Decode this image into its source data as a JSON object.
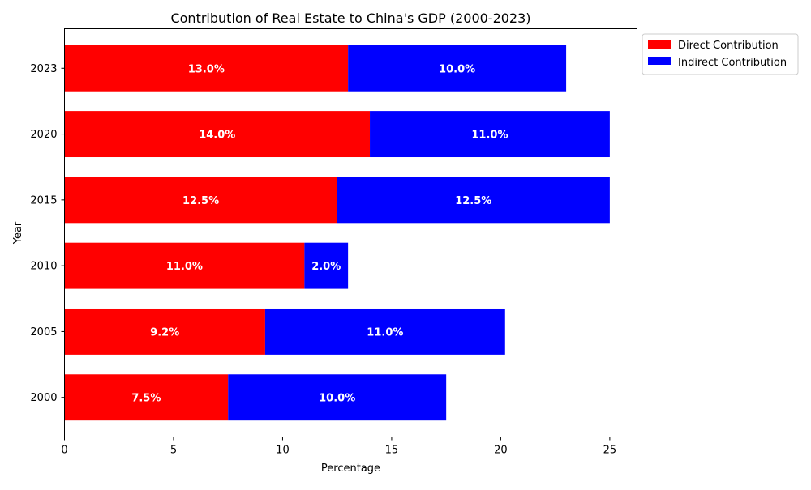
{
  "chart_data": {
    "type": "bar",
    "orientation": "horizontal",
    "stacked": true,
    "title": "Contribution of Real Estate to China's GDP (2000-2023)",
    "xlabel": "Percentage",
    "ylabel": "Year",
    "categories": [
      "2000",
      "2005",
      "2010",
      "2015",
      "2020",
      "2023"
    ],
    "series": [
      {
        "name": "Direct Contribution",
        "color": "#ff0000",
        "values": [
          7.5,
          9.2,
          11.0,
          12.5,
          14.0,
          13.0
        ],
        "value_labels": [
          "7.5%",
          "9.2%",
          "11.0%",
          "12.5%",
          "14.0%",
          "13.0%"
        ]
      },
      {
        "name": "Indirect Contribution",
        "color": "#0000ff",
        "values": [
          10.0,
          11.0,
          2.0,
          12.5,
          11.0,
          10.0
        ],
        "value_labels": [
          "10.0%",
          "11.0%",
          "2.0%",
          "12.5%",
          "11.0%",
          "10.0%"
        ]
      }
    ],
    "xlim": [
      0,
      26.25
    ],
    "xticks": [
      0,
      5,
      10,
      15,
      20,
      25
    ],
    "xtick_labels": [
      "0",
      "5",
      "10",
      "15",
      "20",
      "25"
    ],
    "grid": false,
    "legend_position": "outside-top-right"
  }
}
